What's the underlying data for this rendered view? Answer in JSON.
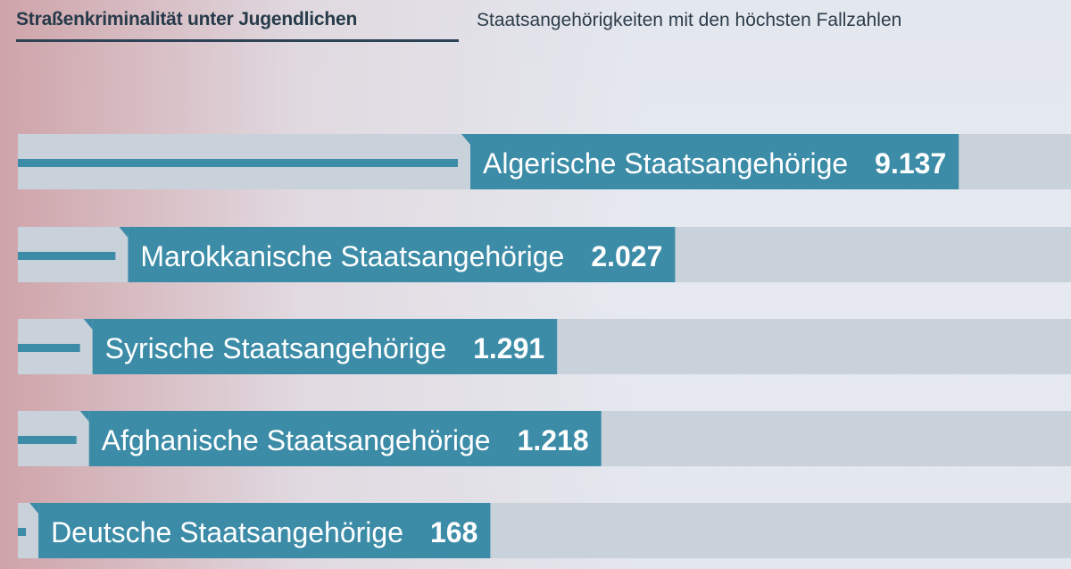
{
  "header": {
    "title": "Straßenkriminalität unter Jugendlichen",
    "subtitle": "Staatsangehörigkeiten mit den höchsten Fallzahlen"
  },
  "colors": {
    "bar": "#3c8ca8",
    "track": "#c9d1da",
    "text": "#ffffff"
  },
  "chart_data": {
    "type": "bar",
    "orientation": "horizontal",
    "title": "Straßenkriminalität unter Jugendlichen",
    "subtitle": "Staatsangehörigkeiten mit den höchsten Fallzahlen",
    "categories": [
      "Algerische Staatsangehörige",
      "Marokkanische Staatsangehörige",
      "Syrische Staatsangehörige",
      "Afghanische Staatsangehörige",
      "Deutsche Staatsangehörige"
    ],
    "values": [
      9137,
      2027,
      1291,
      1218,
      168
    ],
    "value_labels": [
      "9.137",
      "2.027",
      "1.291",
      "1.218",
      "168"
    ],
    "xlabel": "",
    "ylabel": "",
    "grid": false,
    "legend": "none"
  }
}
